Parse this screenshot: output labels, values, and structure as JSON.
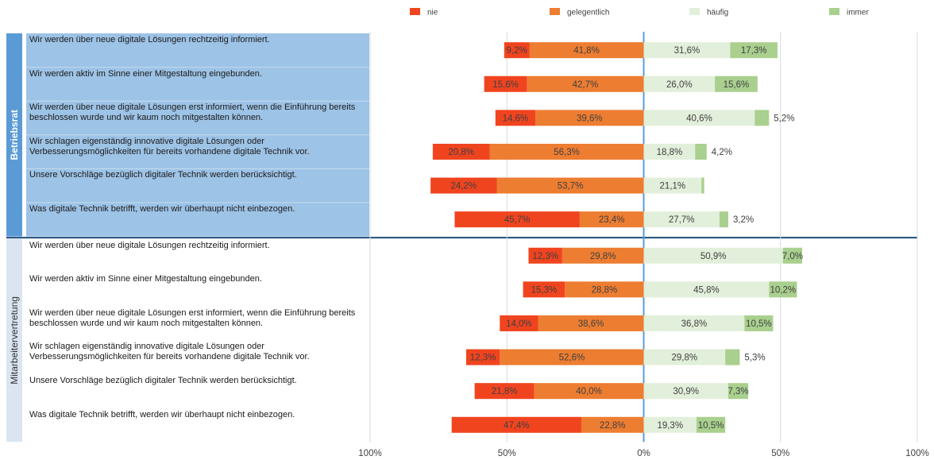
{
  "chart_data": {
    "type": "bar",
    "orientation": "horizontal",
    "stacking": "diverging",
    "xlim": [
      -100,
      100
    ],
    "xticks": [
      {
        "value": -100,
        "label": "100%"
      },
      {
        "value": -50,
        "label": "50%"
      },
      {
        "value": 0,
        "label": "0%"
      },
      {
        "value": 50,
        "label": "50%"
      },
      {
        "value": 100,
        "label": "100%"
      }
    ],
    "grid": true,
    "legend": "top",
    "groups": [
      {
        "name": "Betriebsrat",
        "categories": [
          "Wir werden über neue digitale Lösungen rechtzeitig informiert.",
          "Wir werden aktiv im Sinne einer Mitgestaltung eingebunden.",
          "Wir werden über neue digitale Lösungen erst informiert, wenn die Einführung bereits beschlossen wurde und wir kaum noch mitgestalten können.",
          "Wir schlagen eigenständig innovative digitale Lösungen oder Verbesserungsmöglichkeiten für bereits vorhandene digitale Technik vor.",
          "Unsere Vorschläge bezüglich digitaler Technik werden berücksichtigt.",
          "Was digitale Technik betrifft, werden wir überhaupt nicht einbezogen."
        ]
      },
      {
        "name": "Mitarbeitervertretung",
        "categories": [
          "Wir werden über neue digitale Lösungen rechtzeitig informiert.",
          "Wir werden aktiv im Sinne einer Mitgestaltung eingebunden.",
          "Wir werden über neue digitale Lösungen erst informiert, wenn die Einführung bereits beschlossen wurde und wir kaum noch mitgestalten können.",
          "Wir schlagen eigenständig innovative digitale Lösungen oder Verbesserungsmöglichkeiten für bereits vorhandene digitale Technik vor.",
          "Unsere Vorschläge bezüglich digitaler Technik werden berücksichtigt.",
          "Was digitale Technik betrifft, werden wir überhaupt nicht einbezogen."
        ]
      }
    ],
    "series": [
      {
        "name": "nie",
        "color": "#f0441f",
        "values": [
          -9.2,
          -15.6,
          -14.6,
          -20.8,
          -24.2,
          -45.7,
          -12.3,
          -15.3,
          -14.0,
          -12.3,
          -21.8,
          -47.4
        ],
        "value_labels": [
          "9,2%",
          "15,6%",
          "14,6%",
          "20,8%",
          "24,2%",
          "45,7%",
          "12,3%",
          "15,3%",
          "14,0%",
          "12,3%",
          "21,8%",
          "47,4%"
        ]
      },
      {
        "name": "gelegentlich",
        "color": "#ed7d31",
        "values": [
          -41.8,
          -42.7,
          -39.6,
          -56.3,
          -53.7,
          -23.4,
          -29.8,
          -28.8,
          -38.6,
          -52.6,
          -40.0,
          -22.8
        ],
        "value_labels": [
          "41,8%",
          "42,7%",
          "39,6%",
          "56,3%",
          "53,7%",
          "23,4%",
          "29,8%",
          "28,8%",
          "38,6%",
          "52,6%",
          "40,0%",
          "22,8%"
        ]
      },
      {
        "name": "häufig",
        "color": "#e2efda",
        "values": [
          31.6,
          26.0,
          40.6,
          18.8,
          21.1,
          27.7,
          50.9,
          45.8,
          36.8,
          29.8,
          30.9,
          19.3
        ],
        "value_labels": [
          "31,6%",
          "26,0%",
          "40,6%",
          "18,8%",
          "21,1%",
          "27,7%",
          "50,9%",
          "45,8%",
          "36,8%",
          "29,8%",
          "30,9%",
          "19,3%"
        ]
      },
      {
        "name": "immer",
        "color": "#a9d08e",
        "values": [
          17.3,
          15.6,
          5.2,
          4.2,
          1.0,
          3.2,
          7.0,
          10.2,
          10.5,
          5.3,
          7.3,
          10.5
        ],
        "value_labels": [
          "17,3%",
          "15,6%",
          "5,2%",
          "4,2%",
          null,
          "3,2%",
          "7,0%",
          "10,2%",
          "10,5%",
          "5,3%",
          "7,3%",
          "10,5%"
        ]
      }
    ]
  }
}
